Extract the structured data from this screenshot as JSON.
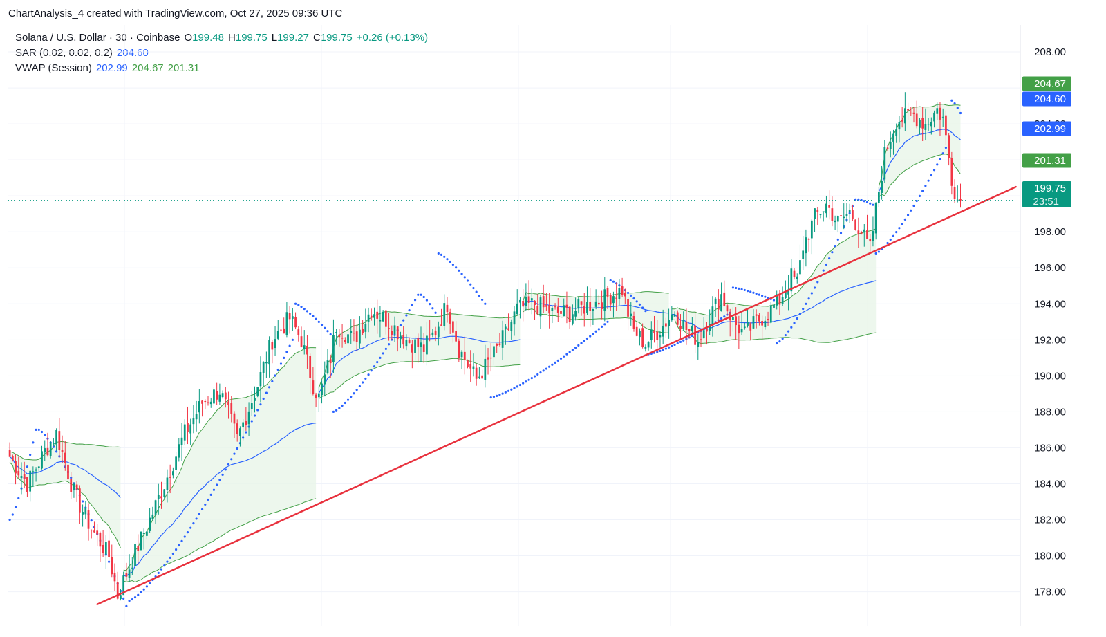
{
  "caption": "ChartAnalysis_4 created with TradingView.com, Oct 27, 2025 09:36 UTC",
  "legend": {
    "symbol": "Solana / U.S. Dollar · 30 · Coinbase",
    "o_label": "O",
    "o_value": "199.48",
    "h_label": "H",
    "h_value": "199.75",
    "l_label": "L",
    "l_value": "199.27",
    "c_label": "C",
    "c_value": "199.75",
    "change": "+0.26 (+0.13%)",
    "sar_label": "SAR (0.02, 0.02, 0.2)",
    "sar_value": "204.60",
    "vwap_label": "VWAP (Session)",
    "vwap_values": [
      "202.99",
      "204.67",
      "201.31"
    ]
  },
  "colors": {
    "up": "#089981",
    "down": "#f23645",
    "vwap": "#2962ff",
    "band": "#43a047",
    "band_fill": "#e8f5e9",
    "trend": "#e8313d"
  },
  "price_labels": [
    {
      "value": "204.67",
      "price": 204.67,
      "color": "#43a047"
    },
    {
      "value": "204.60",
      "price": 204.6,
      "color": "#2962ff"
    },
    {
      "value": "202.99",
      "price": 202.99,
      "color": "#2962ff"
    },
    {
      "value": "201.31",
      "price": 201.31,
      "color": "#43a047"
    },
    {
      "value": "199.75",
      "price": 199.75,
      "color": "#089981",
      "countdown": "23:51"
    }
  ],
  "chart_data": {
    "type": "candlestick",
    "symbol": "SOL/USD",
    "interval": "30",
    "y_ticks": [
      "178.00",
      "180.00",
      "182.00",
      "184.00",
      "186.00",
      "188.00",
      "190.00",
      "192.00",
      "194.00",
      "196.00",
      "198.00",
      "200.00",
      "202.00",
      "204.00",
      "206.00",
      "208.00"
    ],
    "ylim": [
      176.1,
      209.5
    ],
    "last_price": 199.75,
    "close_path": [
      [
        0,
        185.5
      ],
      [
        6,
        184.0
      ],
      [
        12,
        185.8
      ],
      [
        16,
        186.8
      ],
      [
        22,
        183.5
      ],
      [
        28,
        181.5
      ],
      [
        34,
        180.0
      ],
      [
        37,
        177.8
      ],
      [
        40,
        179.0
      ],
      [
        43,
        180.2
      ],
      [
        48,
        182.0
      ],
      [
        55,
        184.8
      ],
      [
        60,
        186.8
      ],
      [
        66,
        188.5
      ],
      [
        72,
        189.2
      ],
      [
        78,
        186.5
      ],
      [
        85,
        189.5
      ],
      [
        90,
        192.0
      ],
      [
        96,
        193.2
      ],
      [
        100,
        192.0
      ],
      [
        104,
        189.5
      ],
      [
        106,
        188.8
      ],
      [
        110,
        191.0
      ],
      [
        112,
        192.8
      ],
      [
        118,
        192.0
      ],
      [
        124,
        193.7
      ],
      [
        130,
        193.0
      ],
      [
        136,
        192.0
      ],
      [
        142,
        191.5
      ],
      [
        146,
        192.5
      ],
      [
        150,
        194.0
      ],
      [
        154,
        191.5
      ],
      [
        160,
        189.8
      ],
      [
        166,
        191.2
      ],
      [
        170,
        192.3
      ],
      [
        174,
        193.7
      ],
      [
        180,
        194.0
      ],
      [
        186,
        193.5
      ],
      [
        192,
        193.5
      ],
      [
        198,
        193.9
      ],
      [
        204,
        194.3
      ],
      [
        210,
        194.8
      ],
      [
        212,
        193.5
      ],
      [
        214,
        192.5
      ],
      [
        218,
        191.8
      ],
      [
        224,
        192.8
      ],
      [
        228,
        193.6
      ],
      [
        232,
        192.6
      ],
      [
        236,
        192.0
      ],
      [
        240,
        193.3
      ],
      [
        244,
        194.5
      ],
      [
        248,
        193.0
      ],
      [
        252,
        192.3
      ],
      [
        256,
        193.0
      ],
      [
        260,
        193.5
      ],
      [
        264,
        194.2
      ],
      [
        268,
        195.5
      ],
      [
        270,
        195.2
      ],
      [
        272,
        197.2
      ],
      [
        276,
        198.8
      ],
      [
        280,
        199.5
      ],
      [
        284,
        198.5
      ],
      [
        288,
        199.1
      ],
      [
        292,
        198.0
      ],
      [
        295,
        197.0
      ],
      [
        298,
        200.3
      ],
      [
        300,
        202.3
      ],
      [
        304,
        204.2
      ],
      [
        310,
        204.5
      ],
      [
        314,
        204.0
      ],
      [
        318,
        204.8
      ],
      [
        320,
        204.3
      ],
      [
        323,
        201.0
      ],
      [
        325,
        199.8
      ],
      [
        326,
        199.75
      ]
    ],
    "candles_total": 327,
    "sar_segments": [
      {
        "from": 0,
        "to": 9,
        "start": 182.0,
        "end": 187.0
      },
      {
        "from": 10,
        "to": 40,
        "start": 187.0,
        "end": 177.2
      },
      {
        "from": 41,
        "to": 97,
        "start": 177.5,
        "end": 192.0
      },
      {
        "from": 98,
        "to": 110,
        "start": 194.0,
        "end": 192.3
      },
      {
        "from": 111,
        "to": 140,
        "start": 188.0,
        "end": 194.5
      },
      {
        "from": 141,
        "to": 146,
        "start": 194.5,
        "end": 193.5
      },
      {
        "from": 147,
        "to": 163,
        "start": 196.8,
        "end": 194.0
      },
      {
        "from": 165,
        "to": 205,
        "start": 188.8,
        "end": 193.0
      },
      {
        "from": 206,
        "to": 218,
        "start": 195.3,
        "end": 193.6
      },
      {
        "from": 219,
        "to": 247,
        "start": 191.2,
        "end": 193.5
      },
      {
        "from": 248,
        "to": 262,
        "start": 194.9,
        "end": 194.2
      },
      {
        "from": 263,
        "to": 290,
        "start": 191.8,
        "end": 199.8
      },
      {
        "from": 291,
        "to": 296,
        "start": 199.8,
        "end": 199.5
      },
      {
        "from": 297,
        "to": 322,
        "start": 196.8,
        "end": 203.0
      },
      {
        "from": 323,
        "to": 326,
        "start": 205.3,
        "end": 204.6
      }
    ],
    "sessions": [
      {
        "from": 0,
        "to": 38
      },
      {
        "from": 39,
        "to": 105
      },
      {
        "from": 106,
        "to": 175
      },
      {
        "from": 176,
        "to": 226
      },
      {
        "from": 227,
        "to": 297
      },
      {
        "from": 298,
        "to": 326
      }
    ],
    "trendline": {
      "x1": 30,
      "y1": 177.3,
      "x2": 345,
      "y2": 200.5
    }
  }
}
